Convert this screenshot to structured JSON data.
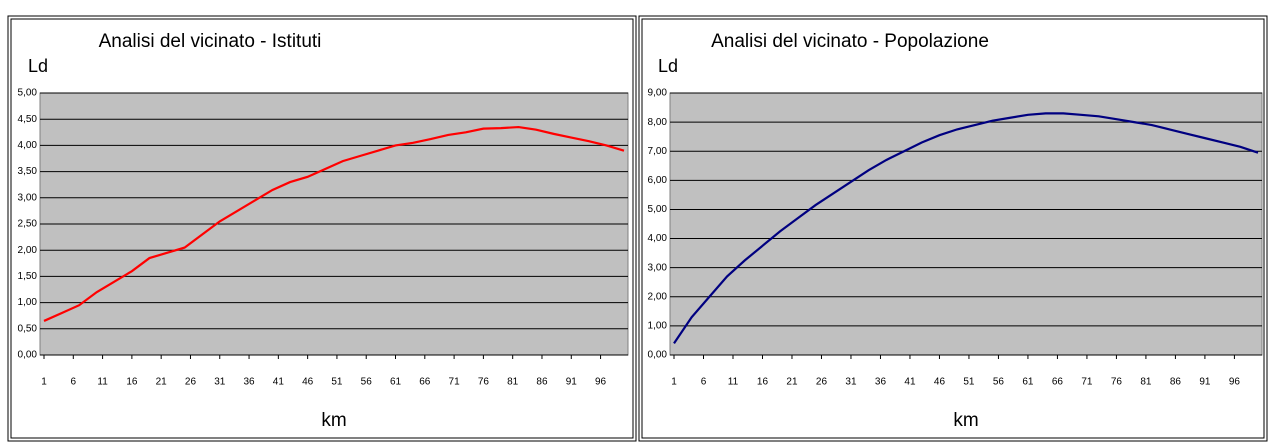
{
  "chart_data": [
    {
      "type": "line",
      "title": "Analisi del vicinato - Istituti",
      "y_label": "Ld",
      "x_label": "km",
      "color": "#ff0000",
      "x": [
        1,
        4,
        7,
        10,
        13,
        16,
        19,
        22,
        25,
        28,
        31,
        34,
        37,
        40,
        43,
        46,
        49,
        52,
        55,
        58,
        61,
        64,
        67,
        70,
        73,
        76,
        79,
        82,
        85,
        88,
        91,
        94,
        97,
        100
      ],
      "values": [
        0.65,
        0.8,
        0.95,
        1.2,
        1.4,
        1.6,
        1.85,
        1.95,
        2.05,
        2.3,
        2.55,
        2.75,
        2.95,
        3.15,
        3.3,
        3.4,
        3.55,
        3.7,
        3.8,
        3.9,
        4.0,
        4.05,
        4.12,
        4.2,
        4.25,
        4.32,
        4.33,
        4.35,
        4.3,
        4.22,
        4.15,
        4.08,
        4.0,
        3.9
      ],
      "xlim": [
        1,
        100
      ],
      "xticks": [
        1,
        6,
        11,
        16,
        21,
        26,
        31,
        36,
        41,
        46,
        51,
        56,
        61,
        66,
        71,
        76,
        81,
        86,
        91,
        96
      ],
      "ylim": [
        0,
        5
      ],
      "yticks": [
        {
          "value": 0,
          "label": "0,00"
        },
        {
          "value": 0.5,
          "label": "0,50"
        },
        {
          "value": 1,
          "label": "1,00"
        },
        {
          "value": 1.5,
          "label": "1,50"
        },
        {
          "value": 2,
          "label": "2,00"
        },
        {
          "value": 2.5,
          "label": "2,50"
        },
        {
          "value": 3,
          "label": "3,00"
        },
        {
          "value": 3.5,
          "label": "3,50"
        },
        {
          "value": 4,
          "label": "4,00"
        },
        {
          "value": 4.5,
          "label": "4,50"
        },
        {
          "value": 5,
          "label": "5,00"
        }
      ],
      "grid": true
    },
    {
      "type": "line",
      "title": "Analisi del vicinato - Popolazione",
      "y_label": "Ld",
      "x_label": "km",
      "color": "#000080",
      "x": [
        1,
        4,
        7,
        10,
        13,
        16,
        19,
        22,
        25,
        28,
        31,
        34,
        37,
        40,
        43,
        46,
        49,
        52,
        55,
        58,
        61,
        64,
        67,
        70,
        73,
        76,
        79,
        82,
        85,
        88,
        91,
        94,
        97,
        100
      ],
      "values": [
        0.4,
        1.3,
        2.0,
        2.7,
        3.25,
        3.75,
        4.25,
        4.7,
        5.15,
        5.55,
        5.95,
        6.35,
        6.7,
        7.0,
        7.3,
        7.55,
        7.75,
        7.9,
        8.05,
        8.15,
        8.25,
        8.3,
        8.3,
        8.25,
        8.2,
        8.1,
        8.0,
        7.9,
        7.75,
        7.6,
        7.45,
        7.3,
        7.15,
        6.95
      ],
      "xlim": [
        1,
        100
      ],
      "xticks": [
        1,
        6,
        11,
        16,
        21,
        26,
        31,
        36,
        41,
        46,
        51,
        56,
        61,
        66,
        71,
        76,
        81,
        86,
        91,
        96
      ],
      "ylim": [
        0,
        9
      ],
      "yticks": [
        {
          "value": 0,
          "label": "0,00"
        },
        {
          "value": 1,
          "label": "1,00"
        },
        {
          "value": 2,
          "label": "2,00"
        },
        {
          "value": 3,
          "label": "3,00"
        },
        {
          "value": 4,
          "label": "4,00"
        },
        {
          "value": 5,
          "label": "5,00"
        },
        {
          "value": 6,
          "label": "6,00"
        },
        {
          "value": 7,
          "label": "7,00"
        },
        {
          "value": 8,
          "label": "8,00"
        },
        {
          "value": 9,
          "label": "9,00"
        }
      ],
      "grid": true
    }
  ]
}
